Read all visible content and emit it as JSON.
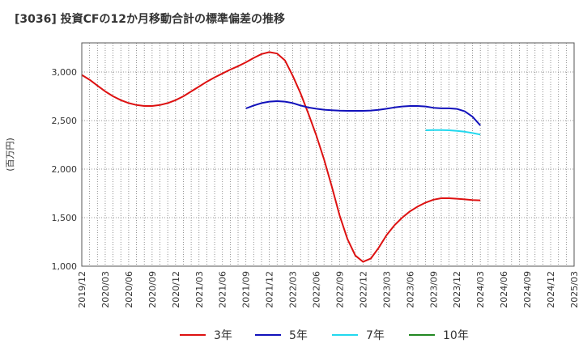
{
  "chart_data": {
    "type": "line",
    "title": "[3036]  投資CFの12か月移動合計の標準偏差の推移",
    "ylabel": "(百万円)",
    "xlabel": "",
    "ylim": [
      1000,
      3300
    ],
    "yticks": [
      1000,
      1500,
      2000,
      2500,
      3000
    ],
    "ytick_labels": [
      "1,000",
      "1,500",
      "2,000",
      "2,500",
      "3,000"
    ],
    "xticks": [
      "2019/12",
      "2020/03",
      "2020/06",
      "2020/09",
      "2020/12",
      "2021/03",
      "2021/06",
      "2021/09",
      "2021/12",
      "2022/03",
      "2022/06",
      "2022/09",
      "2022/12",
      "2023/03",
      "2023/06",
      "2023/09",
      "2023/12",
      "2024/03",
      "2024/06",
      "2024/09",
      "2024/12",
      "2025/03"
    ],
    "grid": true,
    "legend_position": "bottom",
    "series": [
      {
        "name": "3年",
        "color": "#dd1111",
        "x": [
          "2019/12",
          "2020/01",
          "2020/02",
          "2020/03",
          "2020/04",
          "2020/05",
          "2020/06",
          "2020/07",
          "2020/08",
          "2020/09",
          "2020/10",
          "2020/11",
          "2020/12",
          "2021/01",
          "2021/02",
          "2021/03",
          "2021/04",
          "2021/05",
          "2021/06",
          "2021/07",
          "2021/08",
          "2021/09",
          "2021/10",
          "2021/11",
          "2021/12",
          "2022/01",
          "2022/02",
          "2022/03",
          "2022/04",
          "2022/05",
          "2022/06",
          "2022/07",
          "2022/08",
          "2022/09",
          "2022/10",
          "2022/11",
          "2022/12",
          "2023/01",
          "2023/02",
          "2023/03",
          "2023/04",
          "2023/05",
          "2023/06",
          "2023/07",
          "2023/08",
          "2023/09",
          "2023/10",
          "2023/11",
          "2023/12",
          "2024/01",
          "2024/02",
          "2024/03"
        ],
        "values": [
          2970,
          2920,
          2860,
          2800,
          2750,
          2710,
          2680,
          2660,
          2650,
          2650,
          2660,
          2680,
          2710,
          2750,
          2800,
          2850,
          2900,
          2945,
          2985,
          3025,
          3060,
          3100,
          3145,
          3185,
          3205,
          3190,
          3120,
          2960,
          2780,
          2570,
          2350,
          2100,
          1820,
          1520,
          1280,
          1110,
          1045,
          1080,
          1190,
          1320,
          1420,
          1500,
          1565,
          1615,
          1655,
          1685,
          1700,
          1700,
          1695,
          1688,
          1682,
          1678
        ]
      },
      {
        "name": "5年",
        "color": "#1111bb",
        "x": [
          "2021/09",
          "2021/10",
          "2021/11",
          "2021/12",
          "2022/01",
          "2022/02",
          "2022/03",
          "2022/04",
          "2022/05",
          "2022/06",
          "2022/07",
          "2022/08",
          "2022/09",
          "2022/10",
          "2022/11",
          "2022/12",
          "2023/01",
          "2023/02",
          "2023/03",
          "2023/04",
          "2023/05",
          "2023/06",
          "2023/07",
          "2023/08",
          "2023/09",
          "2023/10",
          "2023/11",
          "2023/12",
          "2024/01",
          "2024/02",
          "2024/03"
        ],
        "values": [
          2625,
          2655,
          2680,
          2695,
          2700,
          2695,
          2680,
          2655,
          2635,
          2622,
          2612,
          2606,
          2602,
          2600,
          2600,
          2600,
          2603,
          2610,
          2622,
          2635,
          2645,
          2650,
          2650,
          2645,
          2632,
          2626,
          2626,
          2620,
          2595,
          2540,
          2450
        ]
      },
      {
        "name": "7年",
        "color": "#22d8ee",
        "x": [
          "2023/08",
          "2023/09",
          "2023/10",
          "2023/11",
          "2023/12",
          "2024/01",
          "2024/02",
          "2024/03"
        ],
        "values": [
          2400,
          2402,
          2402,
          2400,
          2393,
          2385,
          2372,
          2356
        ]
      },
      {
        "name": "10年",
        "color": "#228822",
        "x": [],
        "values": []
      }
    ]
  }
}
